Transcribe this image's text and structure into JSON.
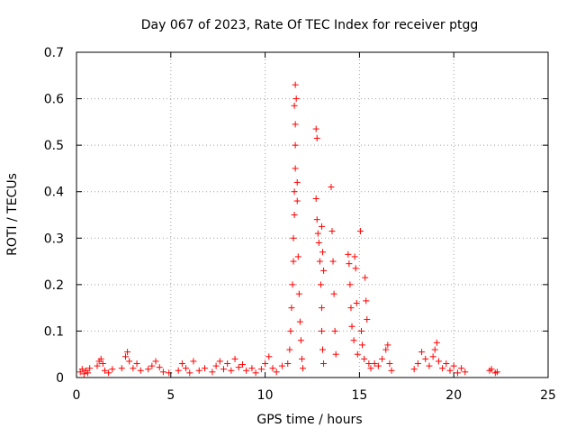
{
  "chart_data": {
    "type": "scatter",
    "title": "Day 067 of 2023, Rate Of TEC Index for receiver ptgg",
    "xlabel": "GPS time / hours",
    "ylabel": "ROTI / TECUs",
    "xlim": [
      0,
      25
    ],
    "ylim": [
      0,
      0.7
    ],
    "xticks": [
      0,
      5,
      10,
      15,
      20,
      25
    ],
    "xtick_labels": [
      "0",
      "5",
      "10",
      "15",
      "20",
      "25"
    ],
    "yticks": [
      0,
      0.1,
      0.2,
      0.3,
      0.4,
      0.5,
      0.6,
      0.7
    ],
    "ytick_labels": [
      "0",
      "0.1",
      "0.2",
      "0.3",
      "0.4",
      "0.5",
      "0.6",
      "0.7"
    ],
    "grid": true,
    "marker": "+",
    "marker_color": "#ff0000",
    "series": [
      {
        "points": [
          [
            0.2,
            0.012
          ],
          [
            0.3,
            0.018
          ],
          [
            0.4,
            0.008
          ],
          [
            0.5,
            0.015
          ],
          [
            0.6,
            0.01
          ],
          [
            0.7,
            0.02
          ],
          [
            1.1,
            0.025
          ],
          [
            1.2,
            0.035
          ],
          [
            1.3,
            0.04
          ],
          [
            1.4,
            0.03
          ],
          [
            1.5,
            0.015
          ],
          [
            1.7,
            0.01
          ],
          [
            1.9,
            0.018
          ],
          [
            2.4,
            0.02
          ],
          [
            2.6,
            0.045
          ],
          [
            2.7,
            0.055
          ],
          [
            2.8,
            0.035
          ],
          [
            3.0,
            0.02
          ],
          [
            3.2,
            0.03
          ],
          [
            3.4,
            0.015
          ],
          [
            3.8,
            0.018
          ],
          [
            4.0,
            0.025
          ],
          [
            4.2,
            0.035
          ],
          [
            4.4,
            0.022
          ],
          [
            4.6,
            0.012
          ],
          [
            4.9,
            0.01
          ],
          [
            5.4,
            0.015
          ],
          [
            5.6,
            0.03
          ],
          [
            5.8,
            0.02
          ],
          [
            6.0,
            0.01
          ],
          [
            6.2,
            0.035
          ],
          [
            6.5,
            0.015
          ],
          [
            6.8,
            0.02
          ],
          [
            7.2,
            0.012
          ],
          [
            7.4,
            0.025
          ],
          [
            7.6,
            0.035
          ],
          [
            7.8,
            0.018
          ],
          [
            8.0,
            0.03
          ],
          [
            8.2,
            0.015
          ],
          [
            8.4,
            0.04
          ],
          [
            8.6,
            0.022
          ],
          [
            8.8,
            0.028
          ],
          [
            9.0,
            0.015
          ],
          [
            9.3,
            0.02
          ],
          [
            9.5,
            0.01
          ],
          [
            9.8,
            0.018
          ],
          [
            10.0,
            0.03
          ],
          [
            10.2,
            0.045
          ],
          [
            10.4,
            0.02
          ],
          [
            10.6,
            0.012
          ],
          [
            10.9,
            0.025
          ],
          [
            11.2,
            0.03
          ],
          [
            11.3,
            0.06
          ],
          [
            11.35,
            0.1
          ],
          [
            11.4,
            0.15
          ],
          [
            11.45,
            0.2
          ],
          [
            11.5,
            0.25
          ],
          [
            11.5,
            0.3
          ],
          [
            11.55,
            0.35
          ],
          [
            11.55,
            0.4
          ],
          [
            11.6,
            0.45
          ],
          [
            11.6,
            0.5
          ],
          [
            11.6,
            0.545
          ],
          [
            11.55,
            0.585
          ],
          [
            11.6,
            0.63
          ],
          [
            11.65,
            0.6
          ],
          [
            11.7,
            0.42
          ],
          [
            11.7,
            0.38
          ],
          [
            11.75,
            0.26
          ],
          [
            11.8,
            0.18
          ],
          [
            11.85,
            0.12
          ],
          [
            11.9,
            0.08
          ],
          [
            11.95,
            0.04
          ],
          [
            12.0,
            0.02
          ],
          [
            12.7,
            0.535
          ],
          [
            12.75,
            0.515
          ],
          [
            12.7,
            0.385
          ],
          [
            12.75,
            0.34
          ],
          [
            12.8,
            0.31
          ],
          [
            12.85,
            0.29
          ],
          [
            12.9,
            0.25
          ],
          [
            12.95,
            0.2
          ],
          [
            13.0,
            0.15
          ],
          [
            13.0,
            0.1
          ],
          [
            13.05,
            0.06
          ],
          [
            13.1,
            0.03
          ],
          [
            13.0,
            0.325
          ],
          [
            13.05,
            0.27
          ],
          [
            13.1,
            0.23
          ],
          [
            13.5,
            0.41
          ],
          [
            13.55,
            0.315
          ],
          [
            13.6,
            0.25
          ],
          [
            13.65,
            0.18
          ],
          [
            13.7,
            0.1
          ],
          [
            13.75,
            0.05
          ],
          [
            14.4,
            0.265
          ],
          [
            14.45,
            0.245
          ],
          [
            14.5,
            0.2
          ],
          [
            14.55,
            0.15
          ],
          [
            14.6,
            0.11
          ],
          [
            14.7,
            0.08
          ],
          [
            14.75,
            0.26
          ],
          [
            14.8,
            0.235
          ],
          [
            14.85,
            0.16
          ],
          [
            14.9,
            0.05
          ],
          [
            15.05,
            0.315
          ],
          [
            15.1,
            0.1
          ],
          [
            15.15,
            0.07
          ],
          [
            15.25,
            0.04
          ],
          [
            15.3,
            0.215
          ],
          [
            15.35,
            0.165
          ],
          [
            15.4,
            0.125
          ],
          [
            15.5,
            0.03
          ],
          [
            15.6,
            0.02
          ],
          [
            15.8,
            0.03
          ],
          [
            16.0,
            0.025
          ],
          [
            16.2,
            0.04
          ],
          [
            16.4,
            0.06
          ],
          [
            16.5,
            0.07
          ],
          [
            16.6,
            0.03
          ],
          [
            16.7,
            0.015
          ],
          [
            17.9,
            0.018
          ],
          [
            18.1,
            0.03
          ],
          [
            18.3,
            0.055
          ],
          [
            18.5,
            0.04
          ],
          [
            18.7,
            0.025
          ],
          [
            18.9,
            0.045
          ],
          [
            19.0,
            0.06
          ],
          [
            19.1,
            0.075
          ],
          [
            19.2,
            0.035
          ],
          [
            19.4,
            0.02
          ],
          [
            19.6,
            0.03
          ],
          [
            19.8,
            0.015
          ],
          [
            20.0,
            0.025
          ],
          [
            20.2,
            0.01
          ],
          [
            20.4,
            0.02
          ],
          [
            20.6,
            0.012
          ],
          [
            21.9,
            0.015
          ],
          [
            22.0,
            0.018
          ],
          [
            22.2,
            0.01
          ],
          [
            22.3,
            0.012
          ]
        ]
      }
    ]
  }
}
